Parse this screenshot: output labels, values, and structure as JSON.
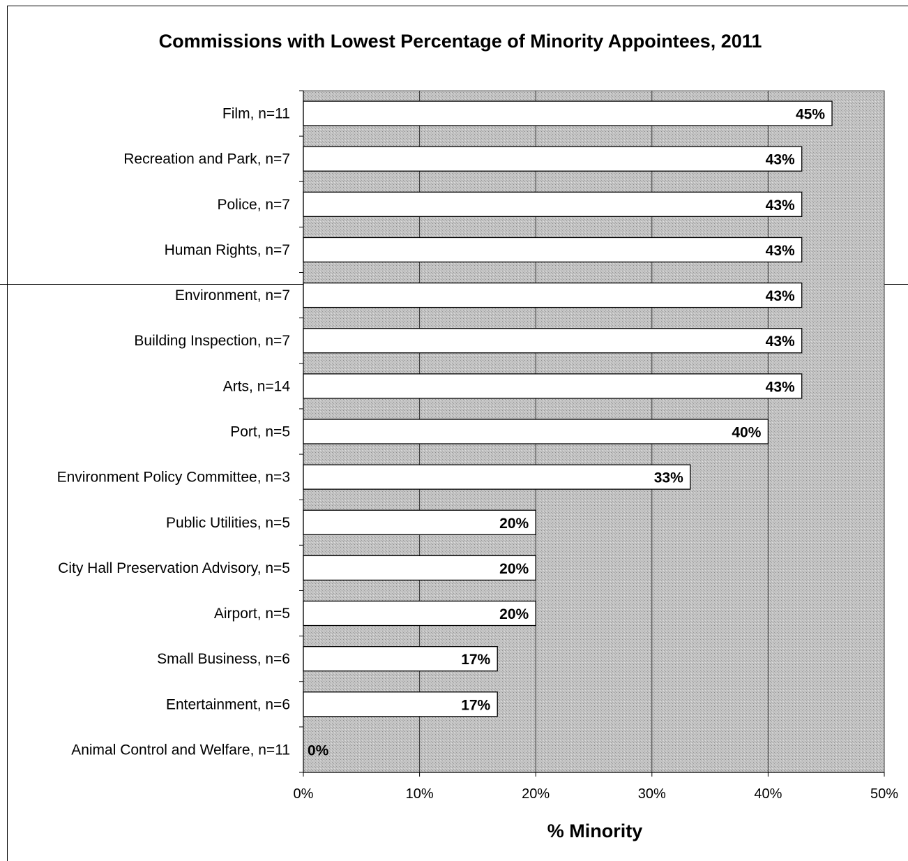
{
  "chart_data": {
    "type": "bar",
    "orientation": "horizontal",
    "title": "Commissions with Lowest Percentage of Minority Appointees, 2011",
    "xlabel": "% Minority",
    "ylabel": "",
    "xlim": [
      0,
      50
    ],
    "x_ticks": [
      "0%",
      "10%",
      "20%",
      "30%",
      "40%",
      "50%"
    ],
    "grid": "vertical",
    "legend": "none",
    "colors": {
      "plot_background": "#b8b8b8",
      "bar_fill": "#ffffff",
      "bar_stroke": "#000000"
    },
    "categories": [
      "Film, n=11",
      "Recreation and Park, n=7",
      "Police, n=7",
      "Human Rights, n=7",
      "Environment, n=7",
      "Building Inspection, n=7",
      "Arts, n=14",
      "Port, n=5",
      "Environment Policy Committee, n=3",
      "Public Utilities, n=5",
      "City Hall Preservation Advisory, n=5",
      "Airport, n=5",
      "Small Business, n=6",
      "Entertainment, n=6",
      "Animal Control and Welfare, n=11"
    ],
    "values": [
      45.5,
      42.9,
      42.9,
      42.9,
      42.9,
      42.9,
      42.9,
      40,
      33.3,
      20,
      20,
      20,
      16.7,
      16.7,
      0
    ],
    "data_labels": [
      "45%",
      "43%",
      "43%",
      "43%",
      "43%",
      "43%",
      "43%",
      "40%",
      "33%",
      "20%",
      "20%",
      "20%",
      "17%",
      "17%",
      "0%"
    ]
  }
}
